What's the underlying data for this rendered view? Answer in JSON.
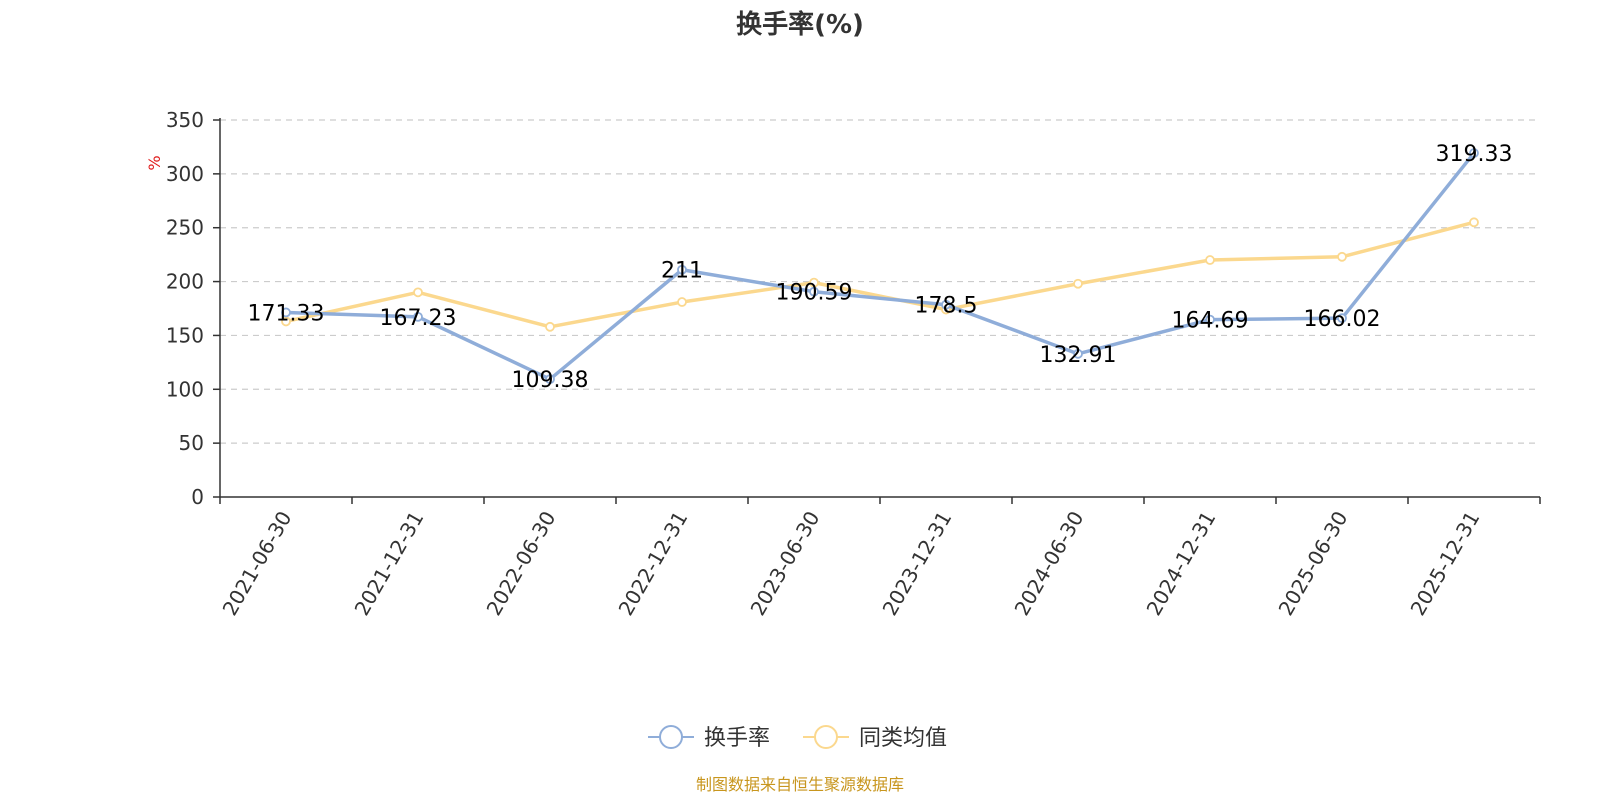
{
  "title": "换手率(%)",
  "source": "制图数据来自恒生聚源数据库",
  "chart_data": {
    "type": "line",
    "title": "换手率(%)",
    "ylabel": "%",
    "xlabel": "",
    "ylim": [
      0,
      350
    ],
    "yticks": [
      "0",
      "50",
      "100",
      "150",
      "200",
      "250",
      "300",
      "350"
    ],
    "grid": true,
    "legend_position": "bottom-center",
    "categories": [
      "2021-06-30",
      "2021-12-31",
      "2022-06-30",
      "2022-12-31",
      "2023-06-30",
      "2023-12-31",
      "2024-06-30",
      "2024-12-31",
      "2025-06-30",
      "2025-12-31"
    ],
    "series": [
      {
        "name": "换手率",
        "color": "#8fadd9",
        "values": [
          171.33,
          167.23,
          109.38,
          211,
          190.59,
          178.5,
          132.91,
          164.69,
          166.02,
          319.33
        ],
        "labels": [
          "171.33",
          "167.23",
          "109.38",
          "211",
          "190.59",
          "178.5",
          "132.91",
          "164.69",
          "166.02",
          "319.33"
        ]
      },
      {
        "name": "同类均值",
        "color": "#fbd88e",
        "values": [
          163,
          190,
          158,
          181,
          199,
          174,
          198,
          220,
          223,
          255
        ]
      }
    ]
  }
}
